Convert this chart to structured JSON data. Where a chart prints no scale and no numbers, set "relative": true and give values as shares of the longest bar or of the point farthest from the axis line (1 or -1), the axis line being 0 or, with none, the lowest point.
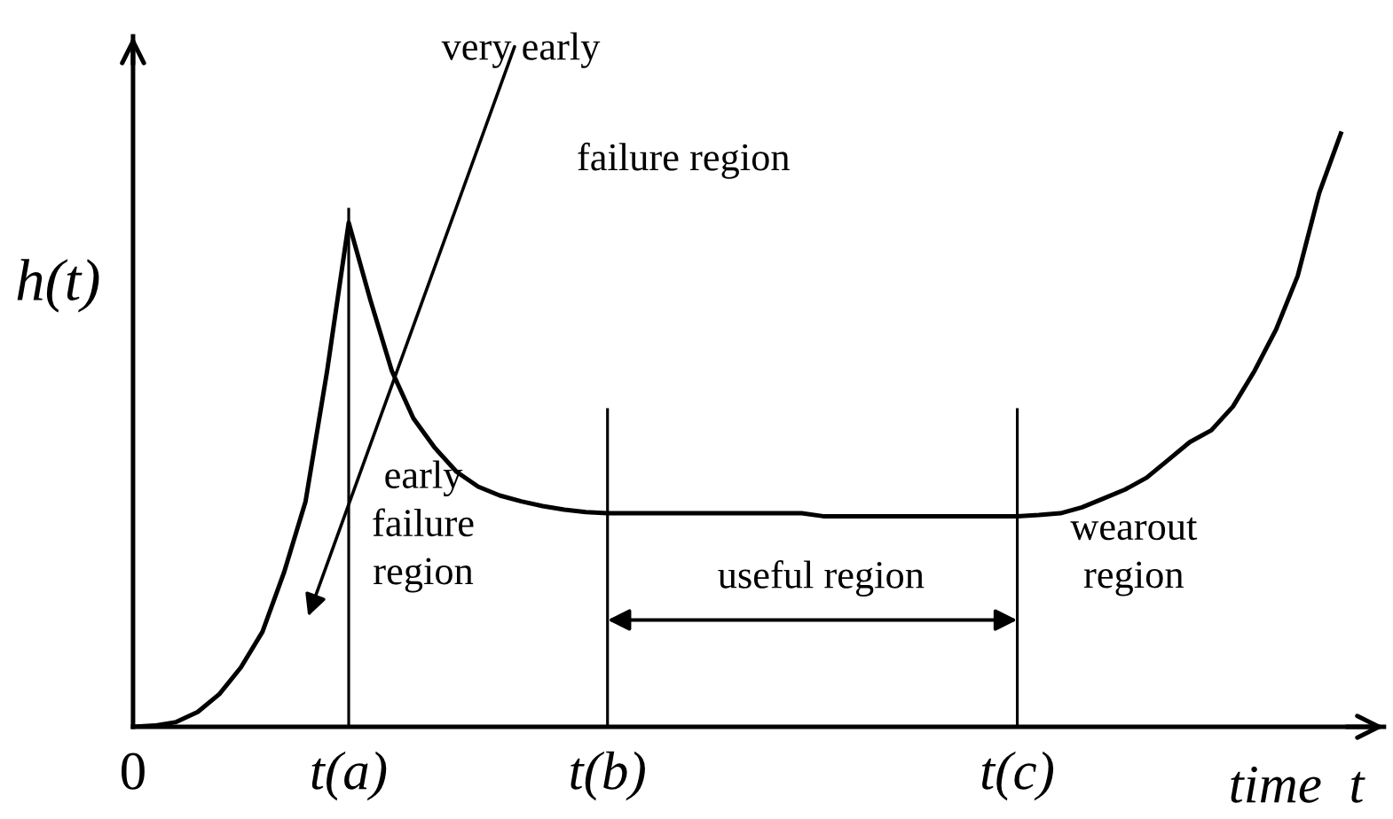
{
  "chart_data": {
    "type": "line",
    "relative": true,
    "xlabel": "time  t",
    "ylabel": "h(t)",
    "categories": [
      "0",
      null,
      null,
      null,
      null,
      null,
      null,
      null,
      null,
      null,
      "t(a)",
      null,
      null,
      null,
      null,
      null,
      null,
      null,
      null,
      null,
      null,
      null,
      "t(b)",
      null,
      null,
      null,
      null,
      null,
      null,
      null,
      null,
      null,
      null,
      null,
      null,
      null,
      null,
      null,
      null,
      null,
      null,
      "t(c)",
      null,
      null,
      null,
      null,
      null,
      null,
      null,
      null,
      null,
      null,
      null,
      null,
      null,
      null,
      null,
      null,
      null
    ],
    "series": [
      {
        "color": "#000000",
        "values": [
          0,
          0.002,
          0.008,
          0.025,
          0.055,
          0.1,
          0.16,
          0.26,
          0.38,
          0.6,
          0.85,
          0.72,
          0.6,
          0.52,
          0.47,
          0.43,
          0.405,
          0.39,
          0.38,
          0.372,
          0.366,
          0.362,
          0.36,
          0.36,
          0.36,
          0.36,
          0.36,
          0.36,
          0.36,
          0.36,
          0.36,
          0.36,
          0.355,
          0.355,
          0.355,
          0.355,
          0.355,
          0.355,
          0.355,
          0.355,
          0.355,
          0.355,
          0.357,
          0.36,
          0.37,
          0.385,
          0.4,
          0.42,
          0.45,
          0.48,
          0.5,
          0.54,
          0.6,
          0.67,
          0.76,
          0.9,
          1.0,
          null,
          null
        ]
      },
      {
        "type": "bar",
        "color": "#000000",
        "values": [
          null,
          null,
          null,
          null,
          null,
          null,
          null,
          null,
          null,
          null,
          0.875,
          null,
          null,
          null,
          null,
          null,
          null,
          null,
          null,
          null,
          null,
          null,
          0.537,
          null,
          null,
          null,
          null,
          null,
          null,
          null,
          null,
          null,
          null,
          null,
          null,
          null,
          null,
          null,
          null,
          null,
          null,
          0.537,
          null,
          null,
          null,
          null,
          null,
          null,
          null,
          null,
          null,
          null,
          null,
          null,
          null,
          null,
          null,
          null,
          null
        ]
      }
    ],
    "annotations": [
      "very early",
      "failure region",
      "early\nfailure\nregion",
      "useful region",
      "wearout\nregion"
    ],
    "legend": false,
    "grid": false,
    "marker": "none",
    "line_style": "solid"
  }
}
